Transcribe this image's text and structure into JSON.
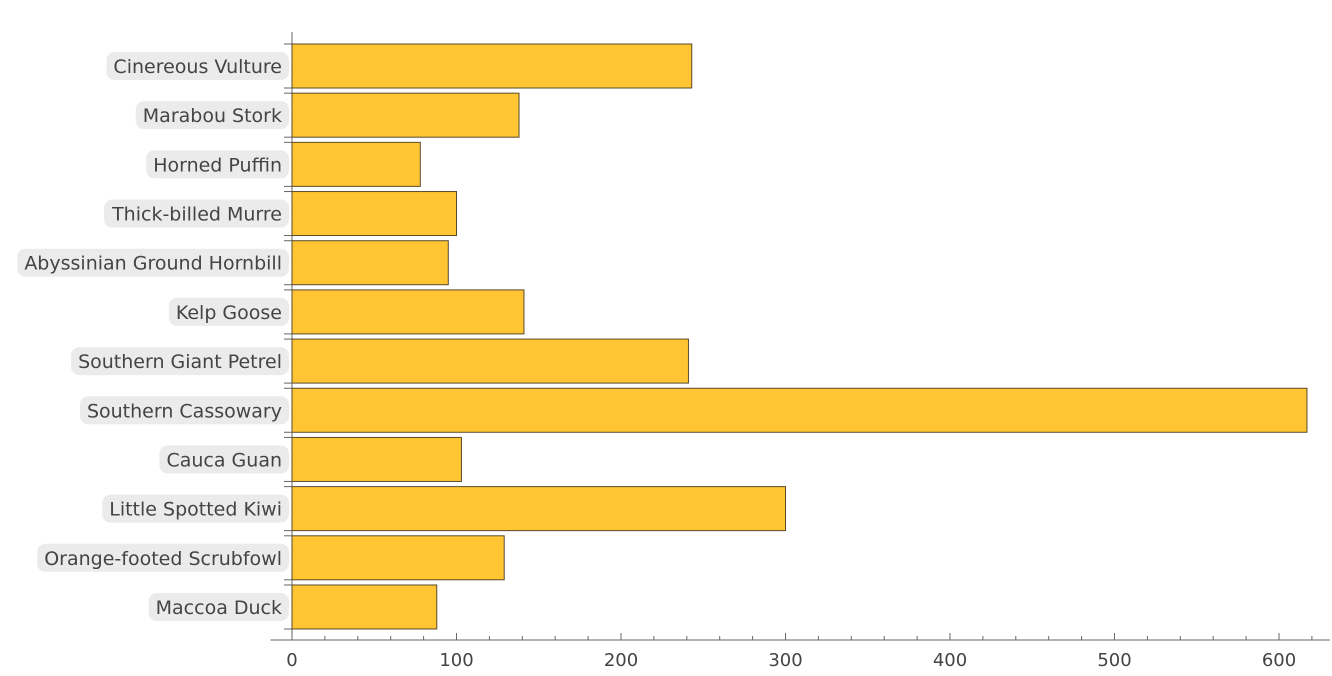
{
  "chart_data": {
    "type": "bar",
    "orientation": "horizontal",
    "title": "",
    "xlabel": "",
    "ylabel": "",
    "categories": [
      "Cinereous Vulture",
      "Marabou Stork",
      "Horned Puffin",
      "Thick-billed Murre",
      "Abyssinian Ground Hornbill",
      "Kelp Goose",
      "Southern Giant Petrel",
      "Southern Cassowary",
      "Cauca Guan",
      "Little Spotted Kiwi",
      "Orange-footed Scrubfowl",
      "Maccoa Duck"
    ],
    "values": [
      243,
      138,
      78,
      100,
      95,
      141,
      241,
      617,
      103,
      300,
      129,
      88
    ],
    "xlim": [
      -13,
      631
    ],
    "xticks": [
      0,
      100,
      200,
      300,
      400,
      500,
      600
    ],
    "xtick_labels": [
      "0",
      "100",
      "200",
      "300",
      "400",
      "500",
      "600"
    ],
    "minor_tick_step": 20,
    "grid": false,
    "colors": {
      "bar": "#ffc533",
      "bar_edge": "#5a4a2a",
      "axis": "#666666",
      "label_bg": "#ebebeb",
      "text": "#444444"
    }
  }
}
